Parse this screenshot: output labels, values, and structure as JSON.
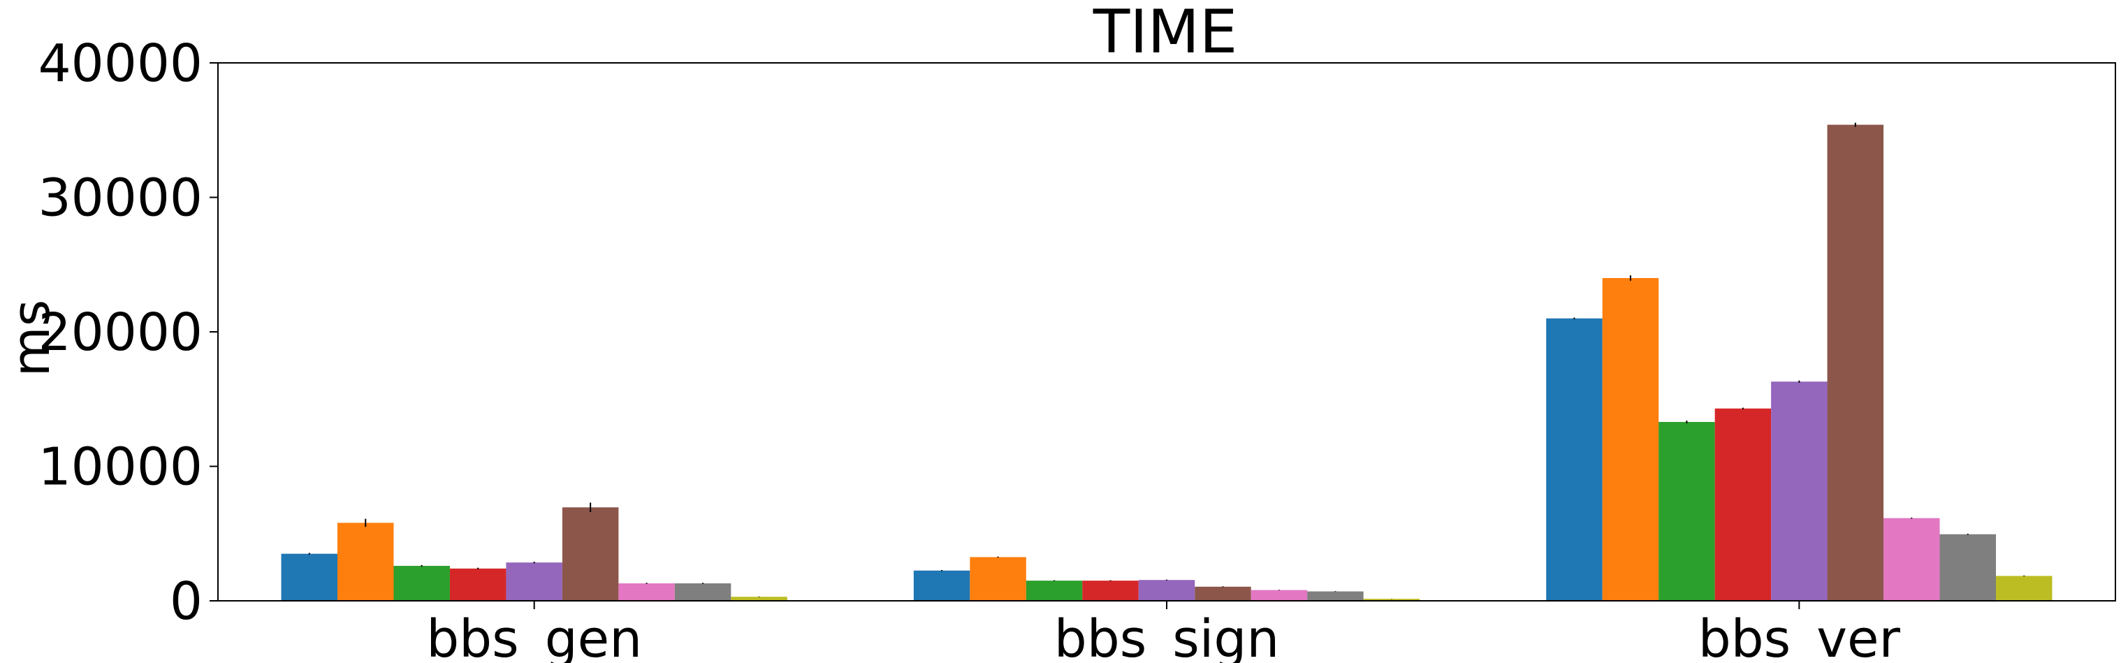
{
  "chart_data": {
    "type": "bar",
    "title": "TIME",
    "xlabel": "",
    "ylabel": "ms",
    "ylim": [
      0,
      40000
    ],
    "yticks": [
      0,
      10000,
      20000,
      30000,
      40000
    ],
    "categories": [
      "bbs_gen",
      "bbs_sign",
      "bbs_ver"
    ],
    "grid": false,
    "series": [
      {
        "color": "#1f77b4",
        "values": [
          3500,
          2250,
          21000
        ],
        "errors": [
          60,
          40,
          60
        ]
      },
      {
        "color": "#ff7f0e",
        "values": [
          5800,
          3250,
          24000
        ],
        "errors": [
          300,
          40,
          200
        ]
      },
      {
        "color": "#2ca02c",
        "values": [
          2600,
          1500,
          13300
        ],
        "errors": [
          60,
          30,
          100
        ]
      },
      {
        "color": "#d62728",
        "values": [
          2400,
          1500,
          14300
        ],
        "errors": [
          60,
          30,
          60
        ]
      },
      {
        "color": "#9467bd",
        "values": [
          2850,
          1550,
          16300
        ],
        "errors": [
          60,
          30,
          80
        ]
      },
      {
        "color": "#8c564b",
        "values": [
          6950,
          1050,
          35400
        ],
        "errors": [
          350,
          30,
          150
        ]
      },
      {
        "color": "#e377c2",
        "values": [
          1300,
          800,
          6150
        ],
        "errors": [
          40,
          20,
          40
        ]
      },
      {
        "color": "#7f7f7f",
        "values": [
          1300,
          700,
          4950
        ],
        "errors": [
          40,
          20,
          40
        ]
      },
      {
        "color": "#bcbd22",
        "values": [
          300,
          150,
          1850
        ],
        "errors": [
          20,
          10,
          30
        ]
      }
    ]
  }
}
